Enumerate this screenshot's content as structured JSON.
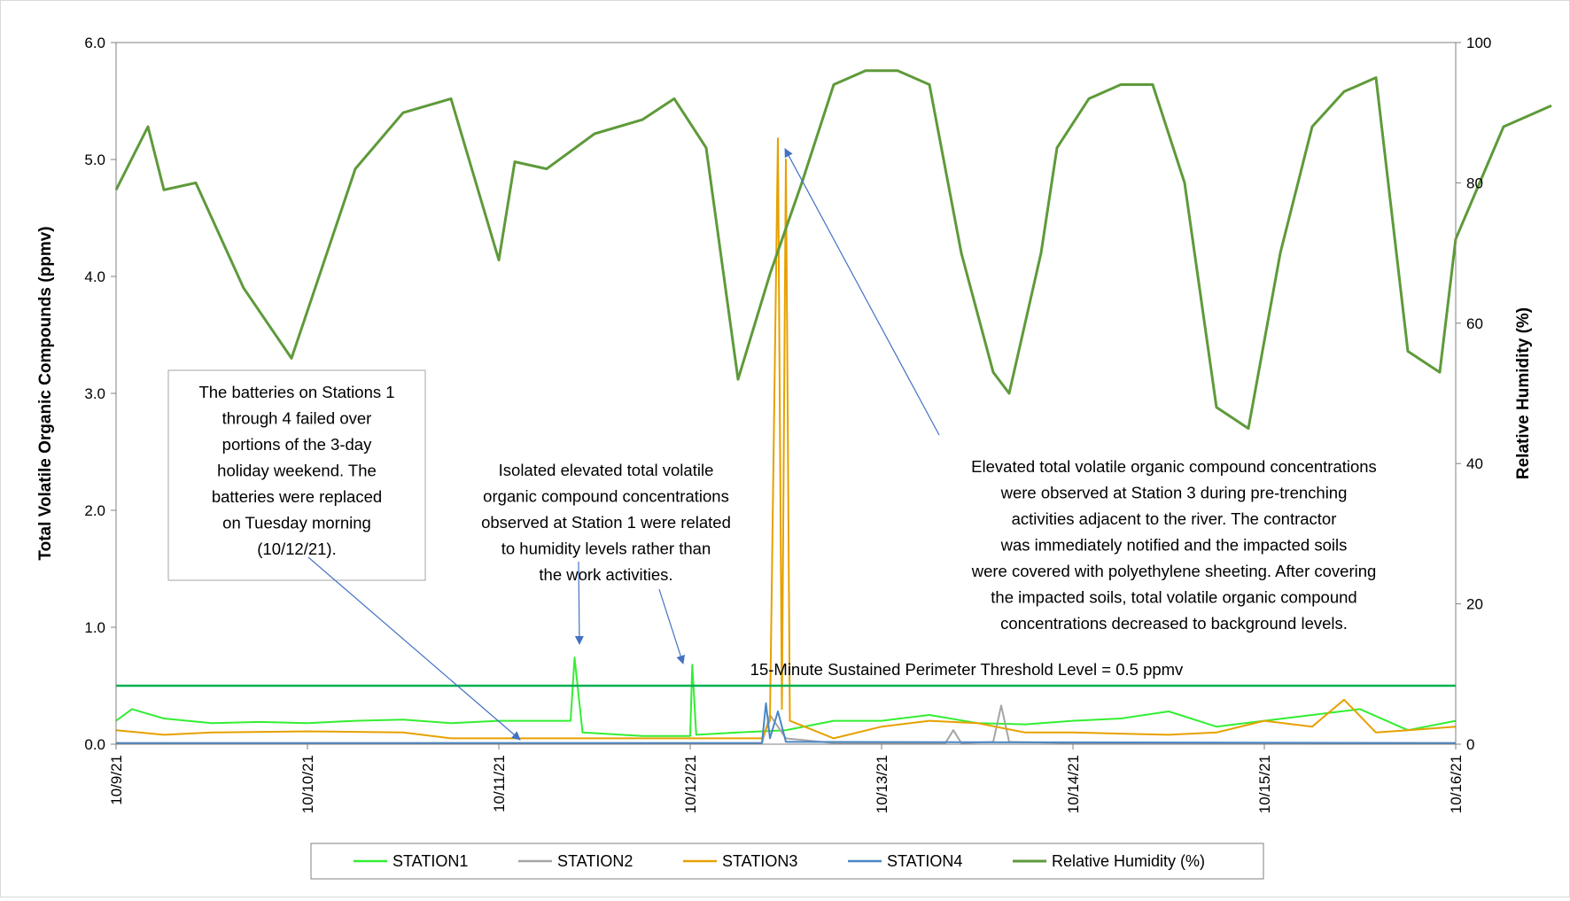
{
  "chart_data": {
    "type": "line",
    "y_left": {
      "label": "Total Volatile Organic Compounds (ppmv)",
      "lim": [
        0,
        6
      ],
      "ticks": [
        "0.0",
        "1.0",
        "2.0",
        "3.0",
        "4.0",
        "5.0",
        "6.0"
      ]
    },
    "y_right": {
      "label": "Relative Humidity (%)",
      "lim": [
        0,
        100
      ],
      "ticks": [
        "0",
        "20",
        "40",
        "60",
        "80",
        "100"
      ]
    },
    "x": {
      "lim": [
        "10/9/21",
        "10/16/21"
      ],
      "ticks": [
        "10/9/21",
        "10/10/21",
        "10/11/21",
        "10/12/21",
        "10/13/21",
        "10/14/21",
        "10/15/21",
        "10/16/21"
      ]
    },
    "threshold": {
      "value": 0.5,
      "label": "15-Minute Sustained Perimeter Threshold Level = 0.5 ppmv",
      "color": "#00b050"
    },
    "series": [
      {
        "name": "STATION1",
        "color": "#33ee33",
        "axis": "left",
        "points": [
          [
            "10/9/21 00:00",
            0.2
          ],
          [
            "10/9/21 02:00",
            0.3
          ],
          [
            "10/9/21 06:00",
            0.22
          ],
          [
            "10/9/21 12:00",
            0.18
          ],
          [
            "10/9/21 18:00",
            0.19
          ],
          [
            "10/10/21 00:00",
            0.18
          ],
          [
            "10/10/21 06:00",
            0.2
          ],
          [
            "10/10/21 12:00",
            0.21
          ],
          [
            "10/10/21 18:00",
            0.18
          ],
          [
            "10/11/21 00:00",
            0.2
          ],
          [
            "10/11/21 09:00",
            0.2
          ],
          [
            "10/11/21 09:30",
            0.74
          ],
          [
            "10/11/21 10:30",
            0.1
          ],
          [
            "10/11/21 18:00",
            0.07
          ],
          [
            "10/12/21 00:00",
            0.07
          ],
          [
            "10/12/21 00:15",
            0.68
          ],
          [
            "10/12/21 00:45",
            0.08
          ],
          [
            "10/12/21 06:00",
            0.1
          ],
          [
            "10/12/21 12:00",
            0.12
          ],
          [
            "10/12/21 18:00",
            0.2
          ],
          [
            "10/13/21 00:00",
            0.2
          ],
          [
            "10/13/21 06:00",
            0.25
          ],
          [
            "10/13/21 12:00",
            0.18
          ],
          [
            "10/13/21 18:00",
            0.17
          ],
          [
            "10/14/21 00:00",
            0.2
          ],
          [
            "10/14/21 06:00",
            0.22
          ],
          [
            "10/14/21 12:00",
            0.28
          ],
          [
            "10/14/21 18:00",
            0.15
          ],
          [
            "10/15/21 00:00",
            0.2
          ],
          [
            "10/15/21 06:00",
            0.25
          ],
          [
            "10/15/21 12:00",
            0.3
          ],
          [
            "10/15/21 18:00",
            0.12
          ],
          [
            "10/16/21 00:00",
            0.2
          ]
        ]
      },
      {
        "name": "STATION2",
        "color": "#a5a5a5",
        "axis": "left",
        "points": [
          [
            "10/9/21 00:00",
            0.01
          ],
          [
            "10/12/21 09:00",
            0.01
          ],
          [
            "10/12/21 10:00",
            0.25
          ],
          [
            "10/12/21 12:00",
            0.05
          ],
          [
            "10/12/21 18:00",
            0.01
          ],
          [
            "10/13/21 08:00",
            0.01
          ],
          [
            "10/13/21 09:00",
            0.12
          ],
          [
            "10/13/21 10:00",
            0.01
          ],
          [
            "10/13/21 14:00",
            0.02
          ],
          [
            "10/13/21 15:00",
            0.33
          ],
          [
            "10/13/21 16:00",
            0.02
          ],
          [
            "10/14/21 00:00",
            0.01
          ],
          [
            "10/16/21 00:00",
            0.01
          ]
        ]
      },
      {
        "name": "STATION3",
        "color": "#e6a100",
        "axis": "left",
        "points": [
          [
            "10/9/21 00:00",
            0.12
          ],
          [
            "10/9/21 06:00",
            0.08
          ],
          [
            "10/9/21 12:00",
            0.1
          ],
          [
            "10/10/21 00:00",
            0.11
          ],
          [
            "10/10/21 12:00",
            0.1
          ],
          [
            "10/10/21 18:00",
            0.05
          ],
          [
            "10/12/21 09:00",
            0.05
          ],
          [
            "10/12/21 10:00",
            0.2
          ],
          [
            "10/12/21 11:00",
            5.18
          ],
          [
            "10/12/21 11:30",
            0.3
          ],
          [
            "10/12/21 12:00",
            5.0
          ],
          [
            "10/12/21 12:30",
            0.2
          ],
          [
            "10/12/21 18:00",
            0.05
          ],
          [
            "10/13/21 00:00",
            0.15
          ],
          [
            "10/13/21 06:00",
            0.2
          ],
          [
            "10/13/21 12:00",
            0.18
          ],
          [
            "10/13/21 18:00",
            0.1
          ],
          [
            "10/14/21 00:00",
            0.1
          ],
          [
            "10/14/21 12:00",
            0.08
          ],
          [
            "10/14/21 18:00",
            0.1
          ],
          [
            "10/15/21 00:00",
            0.2
          ],
          [
            "10/15/21 06:00",
            0.15
          ],
          [
            "10/15/21 10:00",
            0.38
          ],
          [
            "10/15/21 14:00",
            0.1
          ],
          [
            "10/15/21 18:00",
            0.12
          ],
          [
            "10/16/21 00:00",
            0.15
          ]
        ]
      },
      {
        "name": "STATION4",
        "color": "#4a86c6",
        "axis": "left",
        "points": [
          [
            "10/9/21 00:00",
            0.01
          ],
          [
            "10/12/21 09:00",
            0.01
          ],
          [
            "10/12/21 09:30",
            0.35
          ],
          [
            "10/12/21 10:00",
            0.05
          ],
          [
            "10/12/21 11:00",
            0.28
          ],
          [
            "10/12/21 12:00",
            0.02
          ],
          [
            "10/16/21 00:00",
            0.01
          ]
        ]
      },
      {
        "name": "Relative Humidity (%)",
        "color": "#5e9a3a",
        "axis": "right",
        "points": [
          [
            "10/9/21 00:00",
            79
          ],
          [
            "10/9/21 04:00",
            88
          ],
          [
            "10/9/21 06:00",
            79
          ],
          [
            "10/9/21 10:00",
            80
          ],
          [
            "10/9/21 16:00",
            65
          ],
          [
            "10/9/21 22:00",
            55
          ],
          [
            "10/10/21 06:00",
            82
          ],
          [
            "10/10/21 12:00",
            90
          ],
          [
            "10/10/21 18:00",
            92
          ],
          [
            "10/11/21 00:00",
            69
          ],
          [
            "10/11/21 02:00",
            83
          ],
          [
            "10/11/21 06:00",
            82
          ],
          [
            "10/11/21 12:00",
            87
          ],
          [
            "10/11/21 18:00",
            89
          ],
          [
            "10/11/21 22:00",
            92
          ],
          [
            "10/12/21 02:00",
            85
          ],
          [
            "10/12/21 06:00",
            52
          ],
          [
            "10/12/21 10:00",
            67
          ],
          [
            "10/12/21 14:00",
            80
          ],
          [
            "10/12/21 18:00",
            94
          ],
          [
            "10/12/21 22:00",
            96
          ],
          [
            "10/13/21 02:00",
            96
          ],
          [
            "10/13/21 06:00",
            94
          ],
          [
            "10/13/21 10:00",
            70
          ],
          [
            "10/13/21 14:00",
            53
          ],
          [
            "10/13/21 16:00",
            50
          ],
          [
            "10/13/21 20:00",
            70
          ],
          [
            "10/13/21 22:00",
            85
          ],
          [
            "10/14/21 02:00",
            92
          ],
          [
            "10/14/21 06:00",
            94
          ],
          [
            "10/14/21 10:00",
            94
          ],
          [
            "10/14/21 14:00",
            80
          ],
          [
            "10/14/21 18:00",
            48
          ],
          [
            "10/14/21 22:00",
            45
          ],
          [
            "10/15/21 02:00",
            70
          ],
          [
            "10/15/21 06:00",
            88
          ],
          [
            "10/15/21 10:00",
            93
          ],
          [
            "10/15/21 14:00",
            95
          ],
          [
            "10/15/21 18:00",
            56
          ],
          [
            "10/15/21 22:00",
            53
          ],
          [
            "10/16/21 00:00",
            72
          ],
          [
            "10/16/21 06:00",
            88
          ],
          [
            "10/16/21 12:00",
            91
          ]
        ]
      }
    ],
    "annotations": [
      {
        "lines": [
          "The batteries on Stations 1",
          "through 4 failed over",
          "portions of the 3-day",
          "holiday weekend.   The",
          "batteries were replaced",
          "on Tuesday morning",
          "(10/12/21)."
        ],
        "boxed": true
      },
      {
        "lines": [
          "Isolated elevated total volatile",
          "organic compound concentrations",
          "observed at Station 1 were related",
          "to humidity levels rather than",
          "the work activities."
        ],
        "boxed": false
      },
      {
        "lines": [
          "Elevated total volatile organic compound concentrations",
          "were observed at Station 3 during pre-trenching",
          "activities adjacent to the river.  The contractor",
          "was immediately notified and the impacted soils",
          "were covered with polyethylene sheeting.   After covering",
          "the impacted soils, total volatile organic compound",
          "concentrations decreased to background levels."
        ],
        "boxed": false
      }
    ],
    "legend": {
      "position": "bottom",
      "items": [
        "STATION1",
        "STATION2",
        "STATION3",
        "STATION4",
        "Relative Humidity (%)"
      ]
    },
    "grid": false
  }
}
